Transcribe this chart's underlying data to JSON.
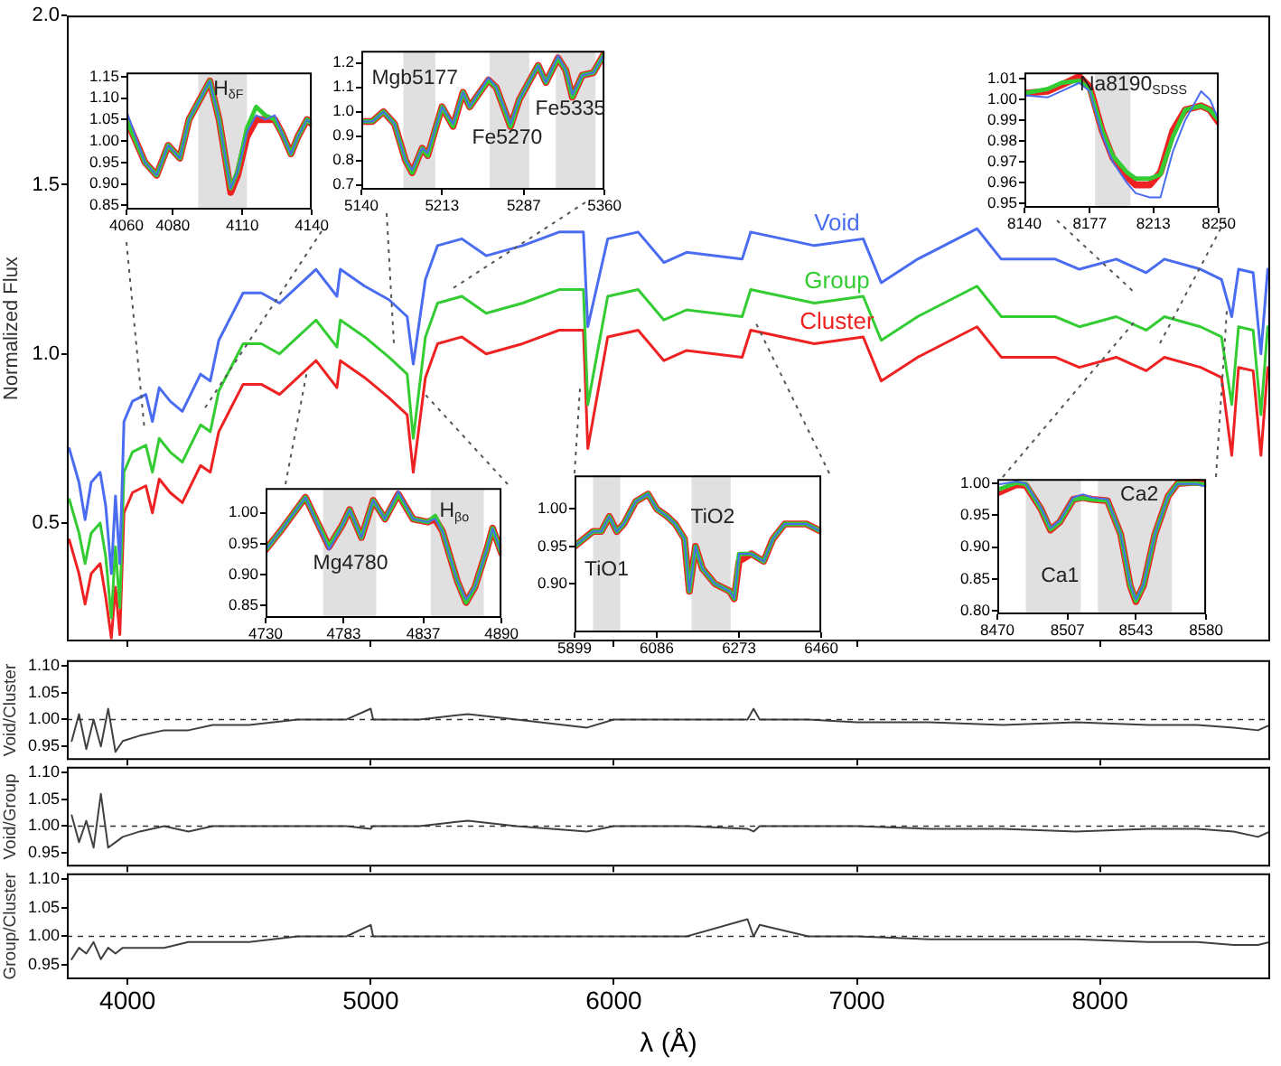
{
  "chart_data": [
    {
      "type": "line",
      "ylabel": "Normalized Flux",
      "xlim": [
        3750,
        8700
      ],
      "ylim": [
        0.15,
        2.0
      ],
      "xticks": [
        4000,
        5000,
        6000,
        7000,
        8000
      ],
      "yticks": [
        0.5,
        {
          "value": 1,
          "label": "1.0"
        },
        1.5,
        {
          "value": 2,
          "label": "2.0"
        }
      ],
      "tick_labels": "y",
      "x": [
        3760,
        3800,
        3825,
        3850,
        3887,
        3910,
        3933,
        3950,
        3968,
        3985,
        4020,
        4075,
        4102,
        4130,
        4175,
        4225,
        4300,
        4340,
        4375,
        4475,
        4550,
        4625,
        4700,
        4775,
        4861,
        4875,
        4975,
        5075,
        5150,
        5175,
        5225,
        5275,
        5375,
        5475,
        5625,
        5775,
        5875,
        5893,
        5975,
        6100,
        6206,
        6300,
        6528,
        6563,
        6825,
        7026,
        7100,
        7250,
        7494,
        7594,
        7816,
        7915,
        8067,
        8190,
        8265,
        8414,
        8500,
        8542,
        8570,
        8630,
        8662,
        8690
      ],
      "series": [
        {
          "name": "Void",
          "color": "#4a6cf0",
          "values": [
            0.72,
            0.62,
            0.51,
            0.62,
            0.65,
            0.55,
            0.35,
            0.58,
            0.38,
            0.8,
            0.86,
            0.88,
            0.8,
            0.9,
            0.86,
            0.83,
            0.94,
            0.92,
            1.04,
            1.18,
            1.18,
            1.15,
            1.2,
            1.25,
            1.17,
            1.25,
            1.2,
            1.16,
            1.11,
            0.97,
            1.22,
            1.32,
            1.34,
            1.29,
            1.32,
            1.36,
            1.36,
            1.08,
            1.34,
            1.36,
            1.27,
            1.3,
            1.28,
            1.36,
            1.32,
            1.34,
            1.21,
            1.28,
            1.37,
            1.28,
            1.28,
            1.25,
            1.28,
            1.24,
            1.28,
            1.25,
            1.22,
            1.11,
            1.25,
            1.24,
            1.0,
            1.25
          ]
        },
        {
          "name": "Group",
          "color": "#33cc33",
          "values": [
            0.57,
            0.47,
            0.38,
            0.47,
            0.5,
            0.4,
            0.22,
            0.43,
            0.25,
            0.65,
            0.71,
            0.73,
            0.65,
            0.75,
            0.71,
            0.68,
            0.79,
            0.77,
            0.89,
            1.03,
            1.03,
            1.0,
            1.05,
            1.1,
            1.02,
            1.1,
            1.05,
            0.99,
            0.94,
            0.75,
            1.05,
            1.15,
            1.17,
            1.12,
            1.15,
            1.19,
            1.19,
            0.85,
            1.17,
            1.19,
            1.1,
            1.13,
            1.11,
            1.19,
            1.15,
            1.17,
            1.04,
            1.11,
            1.2,
            1.11,
            1.11,
            1.08,
            1.11,
            1.07,
            1.11,
            1.08,
            1.05,
            0.85,
            1.08,
            1.07,
            0.82,
            1.08
          ]
        },
        {
          "name": "Cluster",
          "color": "#ee2222",
          "values": [
            0.45,
            0.35,
            0.26,
            0.35,
            0.38,
            0.28,
            0.16,
            0.31,
            0.17,
            0.53,
            0.59,
            0.61,
            0.53,
            0.63,
            0.59,
            0.56,
            0.67,
            0.65,
            0.77,
            0.91,
            0.91,
            0.88,
            0.93,
            0.98,
            0.9,
            0.98,
            0.93,
            0.87,
            0.82,
            0.65,
            0.93,
            1.03,
            1.05,
            1.0,
            1.03,
            1.07,
            1.07,
            0.72,
            1.05,
            1.07,
            0.98,
            1.01,
            0.99,
            1.07,
            1.03,
            1.05,
            0.92,
            0.99,
            1.08,
            0.99,
            0.99,
            0.96,
            0.99,
            0.95,
            0.99,
            0.96,
            0.93,
            0.7,
            0.96,
            0.95,
            0.7,
            0.96
          ]
        }
      ]
    },
    {
      "type": "line",
      "xlim": [
        4060,
        4140
      ],
      "ylim": [
        0.84,
        1.16
      ],
      "xticks": [
        4060,
        4080,
        4110,
        4140
      ],
      "yticks": [
        {
          "value": 0.85,
          "label": "0.85"
        },
        {
          "value": 0.9,
          "label": "0.90"
        },
        {
          "value": 0.95,
          "label": "0.95"
        },
        {
          "value": 1,
          "label": "1.00"
        },
        {
          "value": 1.05,
          "label": "1.05"
        },
        {
          "value": 1.1,
          "label": "1.10"
        },
        {
          "value": 1.15,
          "label": "1.15"
        }
      ],
      "bands": [
        {
          "axis": "x",
          "from": 4091,
          "to": 4112,
          "color": "#e0e0e0"
        }
      ],
      "annotations": [
        "H$_{δF}$"
      ],
      "x": [
        4060,
        4064,
        4068,
        4073,
        4078,
        4083,
        4087,
        4092,
        4096,
        4100,
        4103,
        4105,
        4108,
        4112,
        4116,
        4120,
        4124,
        4127,
        4131,
        4134,
        4138,
        4140
      ],
      "series": [
        {
          "color": "#4a6cf0",
          "values": [
            1.07,
            1.01,
            0.95,
            0.92,
            0.99,
            0.96,
            1.05,
            1.1,
            1.14,
            1.05,
            0.95,
            0.89,
            0.93,
            1.02,
            1.06,
            1.05,
            1.06,
            1.02,
            0.97,
            1.01,
            1.05,
            1.04
          ]
        },
        {
          "color": "#33cc33",
          "values": [
            1.05,
            1.0,
            0.95,
            0.92,
            0.99,
            0.96,
            1.05,
            1.1,
            1.14,
            1.05,
            0.95,
            0.89,
            0.93,
            1.03,
            1.08,
            1.06,
            1.05,
            1.02,
            0.97,
            1.01,
            1.05,
            1.04
          ]
        },
        {
          "color": "#ee2222",
          "values": [
            1.05,
            1.0,
            0.95,
            0.92,
            0.99,
            0.96,
            1.05,
            1.1,
            1.14,
            1.05,
            0.95,
            0.88,
            0.92,
            1.01,
            1.05,
            1.05,
            1.05,
            1.02,
            0.97,
            1.01,
            1.05,
            1.04
          ]
        }
      ]
    },
    {
      "type": "line",
      "xlim": [
        5140,
        5360
      ],
      "ylim": [
        0.68,
        1.25
      ],
      "xticks": [
        5140,
        5213,
        5287,
        5360
      ],
      "yticks": [
        0.7,
        0.8,
        0.9,
        {
          "value": 1,
          "label": "1.0"
        },
        1.1,
        1.2
      ],
      "bands": [
        {
          "axis": "x",
          "from": 5178,
          "to": 5207,
          "color": "#e0e0e0"
        },
        {
          "axis": "x",
          "from": 5256,
          "to": 5292,
          "color": "#e0e0e0"
        },
        {
          "axis": "x",
          "from": 5316,
          "to": 5352,
          "color": "#e0e0e0"
        }
      ],
      "annotations": [
        "Mgb5177",
        "Fe5270",
        "Fe5335"
      ],
      "x": [
        5140,
        5150,
        5160,
        5170,
        5180,
        5186,
        5195,
        5200,
        5213,
        5223,
        5232,
        5238,
        5255,
        5262,
        5275,
        5283,
        5300,
        5307,
        5318,
        5325,
        5331,
        5340,
        5350,
        5360
      ],
      "series": [
        {
          "color": "#4a6cf0",
          "values": [
            0.96,
            0.96,
            1.0,
            0.95,
            0.8,
            0.76,
            0.85,
            0.83,
            1.02,
            0.95,
            1.08,
            1.02,
            1.14,
            1.1,
            0.95,
            1.05,
            1.19,
            1.12,
            1.23,
            1.17,
            1.07,
            1.15,
            1.16,
            1.24
          ]
        },
        {
          "color": "#33cc33",
          "values": [
            0.96,
            0.96,
            1.0,
            0.95,
            0.8,
            0.75,
            0.85,
            0.82,
            1.02,
            0.94,
            1.08,
            1.02,
            1.13,
            1.1,
            0.94,
            1.05,
            1.19,
            1.12,
            1.22,
            1.17,
            1.06,
            1.15,
            1.16,
            1.24
          ]
        },
        {
          "color": "#ee2222",
          "values": [
            0.96,
            0.96,
            1.0,
            0.95,
            0.8,
            0.75,
            0.85,
            0.82,
            1.02,
            0.94,
            1.08,
            1.02,
            1.13,
            1.1,
            0.94,
            1.05,
            1.19,
            1.12,
            1.22,
            1.17,
            1.06,
            1.15,
            1.16,
            1.24
          ]
        }
      ]
    },
    {
      "type": "line",
      "xlim": [
        8140,
        8250
      ],
      "ylim": [
        0.948,
        1.013
      ],
      "xticks": [
        8140,
        8177,
        8213,
        8250
      ],
      "yticks": [
        0.95,
        0.96,
        0.97,
        0.98,
        0.99,
        {
          "value": 1,
          "label": "1.00"
        },
        1.01
      ],
      "bands": [
        {
          "axis": "x",
          "from": 8180,
          "to": 8200,
          "color": "#e0e0e0"
        }
      ],
      "annotations": [
        "Na8190$_{SDSS}$"
      ],
      "x": [
        8140,
        8153,
        8161,
        8171,
        8177,
        8184,
        8190,
        8198,
        8203,
        8211,
        8217,
        8224,
        8231,
        8240,
        8245,
        8250
      ],
      "series": [
        {
          "color": "#4a6cf0",
          "values": [
            1.002,
            1.001,
            1.004,
            1.008,
            1.004,
            0.983,
            0.97,
            0.96,
            0.955,
            0.953,
            0.953,
            0.975,
            0.99,
            1.004,
            1.0,
            0.99
          ]
        },
        {
          "color": "#33cc33",
          "values": [
            1.003,
            1.005,
            1.008,
            1.009,
            1.005,
            0.985,
            0.973,
            0.965,
            0.962,
            0.962,
            0.964,
            0.982,
            0.995,
            0.997,
            0.995,
            0.99
          ]
        },
        {
          "color": "#ee2222",
          "values": [
            1.003,
            1.004,
            1.007,
            1.011,
            1.006,
            0.985,
            0.972,
            0.963,
            0.959,
            0.959,
            0.965,
            0.985,
            0.995,
            0.997,
            0.995,
            0.989
          ]
        }
      ]
    },
    {
      "type": "line",
      "xlim": [
        4730,
        4890
      ],
      "ylim": [
        0.83,
        1.04
      ],
      "xticks": [
        4730,
        4783,
        4837,
        4890
      ],
      "yticks": [
        0.85,
        {
          "value": 0.9,
          "label": "0.90"
        },
        0.95,
        {
          "value": 1,
          "label": "1.00"
        }
      ],
      "bands": [
        {
          "axis": "x",
          "from": 4769,
          "to": 4805,
          "color": "#e0e0e0"
        },
        {
          "axis": "x",
          "from": 4842,
          "to": 4878,
          "color": "#e0e0e0"
        }
      ],
      "annotations": [
        "Mg4780",
        "H$_{βo}$"
      ],
      "x": [
        4730,
        4740,
        4757,
        4773,
        4782,
        4787,
        4795,
        4803,
        4811,
        4820,
        4830,
        4840,
        4845,
        4850,
        4860,
        4866,
        4872,
        4880,
        4884,
        4890
      ],
      "series": [
        {
          "color": "#4a6cf0",
          "values": [
            0.94,
            0.97,
            1.025,
            0.94,
            0.98,
            1.005,
            0.96,
            1.02,
            0.99,
            1.035,
            0.99,
            0.985,
            0.99,
            0.97,
            0.89,
            0.86,
            0.88,
            0.94,
            0.975,
            0.935
          ]
        },
        {
          "color": "#33cc33",
          "values": [
            0.94,
            0.97,
            1.025,
            0.945,
            0.98,
            1.005,
            0.96,
            1.02,
            0.99,
            1.03,
            0.99,
            0.985,
            0.995,
            0.97,
            0.89,
            0.855,
            0.88,
            0.94,
            0.975,
            0.935
          ]
        },
        {
          "color": "#ee2222",
          "values": [
            0.94,
            0.97,
            1.025,
            0.945,
            0.98,
            1.005,
            0.96,
            1.02,
            0.99,
            1.03,
            0.99,
            0.985,
            0.99,
            0.97,
            0.89,
            0.855,
            0.88,
            0.94,
            0.975,
            0.935
          ]
        }
      ]
    },
    {
      "type": "line",
      "xlim": [
        5899,
        6460
      ],
      "ylim": [
        0.835,
        1.045
      ],
      "xticks": [
        5899,
        6086,
        6273,
        6460
      ],
      "yticks": [
        {
          "value": 0.9,
          "label": "0.90"
        },
        0.95,
        {
          "value": 1,
          "label": "1.00"
        }
      ],
      "bands": [
        {
          "axis": "x",
          "from": 5941,
          "to": 6003,
          "color": "#e0e0e0"
        },
        {
          "axis": "x",
          "from": 6165,
          "to": 6254,
          "color": "#e0e0e0"
        }
      ],
      "annotations": [
        "TiO1",
        "TiO2"
      ],
      "x": [
        5899,
        5920,
        5941,
        5960,
        5978,
        5995,
        6011,
        6038,
        6066,
        6086,
        6110,
        6128,
        6149,
        6160,
        6174,
        6190,
        6218,
        6252,
        6262,
        6273,
        6301,
        6329,
        6350,
        6377,
        6426,
        6460
      ],
      "series": [
        {
          "color": "#4a6cf0",
          "values": [
            0.95,
            0.96,
            0.97,
            0.97,
            0.99,
            0.97,
            0.98,
            1.01,
            1.02,
            1.0,
            0.99,
            0.98,
            0.96,
            0.89,
            0.95,
            0.92,
            0.9,
            0.89,
            0.88,
            0.94,
            0.94,
            0.93,
            0.96,
            0.98,
            0.98,
            0.97
          ]
        },
        {
          "color": "#33cc33",
          "values": [
            0.95,
            0.96,
            0.97,
            0.97,
            0.99,
            0.97,
            0.98,
            1.01,
            1.02,
            1.0,
            0.99,
            0.98,
            0.96,
            0.89,
            0.95,
            0.92,
            0.9,
            0.89,
            0.88,
            0.94,
            0.94,
            0.93,
            0.96,
            0.98,
            0.98,
            0.97
          ]
        },
        {
          "color": "#ee2222",
          "values": [
            0.95,
            0.96,
            0.97,
            0.97,
            0.99,
            0.97,
            0.98,
            1.01,
            1.02,
            1.0,
            0.99,
            0.98,
            0.96,
            0.89,
            0.95,
            0.92,
            0.9,
            0.89,
            0.88,
            0.93,
            0.94,
            0.93,
            0.96,
            0.98,
            0.98,
            0.97
          ]
        }
      ]
    },
    {
      "type": "line",
      "xlim": [
        8470,
        8580
      ],
      "ylim": [
        0.795,
        1.007
      ],
      "xticks": [
        8470,
        8507,
        8543,
        8580
      ],
      "yticks": [
        {
          "value": 0.8,
          "label": "0.80"
        },
        0.85,
        {
          "value": 0.9,
          "label": "0.90"
        },
        0.95,
        {
          "value": 1,
          "label": "1.00"
        }
      ],
      "bands": [
        {
          "axis": "x",
          "from": 8485,
          "to": 8514,
          "color": "#e0e0e0"
        },
        {
          "axis": "x",
          "from": 8523,
          "to": 8562,
          "color": "#e0e0e0"
        }
      ],
      "annotations": [
        "Ca1",
        "Ca2"
      ],
      "x": [
        8470,
        8480,
        8485,
        8493,
        8498,
        8503,
        8510,
        8515,
        8520,
        8528,
        8535,
        8540,
        8543,
        8547,
        8553,
        8560,
        8565,
        8575,
        8580
      ],
      "series": [
        {
          "color": "#4a6cf0",
          "values": [
            0.998,
            1.003,
            1.0,
            0.962,
            0.93,
            0.942,
            0.978,
            0.983,
            0.978,
            0.975,
            0.92,
            0.842,
            0.818,
            0.842,
            0.92,
            0.98,
            0.999,
            0.999,
            0.995
          ]
        },
        {
          "color": "#33cc33",
          "values": [
            0.99,
            1.001,
            0.999,
            0.96,
            0.928,
            0.94,
            0.975,
            0.977,
            0.975,
            0.973,
            0.92,
            0.84,
            0.816,
            0.84,
            0.92,
            0.98,
            1.0,
            1.0,
            0.998
          ]
        },
        {
          "color": "#ee2222",
          "values": [
            0.985,
            0.998,
            0.997,
            0.96,
            0.927,
            0.94,
            0.975,
            0.978,
            0.975,
            0.973,
            0.92,
            0.84,
            0.815,
            0.84,
            0.92,
            0.98,
            1.0,
            1.002,
            1.0
          ]
        }
      ]
    },
    {
      "type": "line",
      "ylabel": "Void/Cluster",
      "xlim": [
        3750,
        8700
      ],
      "ylim": [
        0.925,
        1.11
      ],
      "xticks": [
        4000,
        5000,
        6000,
        7000,
        8000
      ],
      "yticks": [
        0.95,
        {
          "value": 1,
          "label": "1.00"
        },
        1.05,
        {
          "value": 1.1,
          "label": "1.10"
        }
      ],
      "tick_labels": "y",
      "ref_lines": [
        {
          "axis": "y",
          "value": 1,
          "line_style": "dashed"
        }
      ],
      "x": [
        3770,
        3800,
        3830,
        3860,
        3890,
        3920,
        3950,
        3980,
        4050,
        4150,
        4250,
        4350,
        4500,
        4700,
        4900,
        5000,
        5010,
        5200,
        5400,
        5600,
        5890,
        6000,
        6300,
        6550,
        6575,
        6600,
        6800,
        7000,
        7300,
        7600,
        7900,
        8200,
        8400,
        8550,
        8650,
        8700
      ],
      "series": [
        {
          "color": "#404040",
          "values": [
            0.96,
            1.01,
            0.945,
            1.0,
            0.95,
            1.02,
            0.94,
            0.96,
            0.97,
            0.98,
            0.98,
            0.99,
            0.99,
            1.0,
            1.0,
            1.02,
            1.0,
            1.0,
            1.01,
            1.0,
            0.985,
            1.0,
            1.0,
            1.0,
            1.02,
            1.0,
            1.0,
            0.995,
            0.995,
            0.99,
            0.995,
            0.99,
            0.99,
            0.985,
            0.98,
            0.99
          ]
        }
      ]
    },
    {
      "type": "line",
      "ylabel": "Void/Group",
      "xlim": [
        3750,
        8700
      ],
      "ylim": [
        0.925,
        1.11
      ],
      "xticks": [
        4000,
        5000,
        6000,
        7000,
        8000
      ],
      "yticks": [
        0.95,
        {
          "value": 1,
          "label": "1.00"
        },
        1.05,
        {
          "value": 1.1,
          "label": "1.10"
        }
      ],
      "tick_labels": "y",
      "ref_lines": [
        {
          "axis": "y",
          "value": 1,
          "line_style": "dashed"
        }
      ],
      "x": [
        3770,
        3800,
        3830,
        3860,
        3890,
        3920,
        3950,
        3980,
        4050,
        4150,
        4250,
        4350,
        4500,
        4700,
        4900,
        5000,
        5010,
        5200,
        5400,
        5600,
        5890,
        6000,
        6300,
        6550,
        6575,
        6600,
        6800,
        7000,
        7300,
        7600,
        7900,
        8200,
        8400,
        8550,
        8650,
        8700
      ],
      "series": [
        {
          "color": "#404040",
          "values": [
            1.02,
            0.97,
            1.01,
            0.96,
            1.06,
            0.96,
            0.97,
            0.98,
            0.99,
            1.0,
            0.99,
            1.0,
            1.0,
            1.0,
            1.0,
            0.995,
            1.0,
            1.0,
            1.01,
            1.0,
            0.99,
            1.0,
            1.0,
            0.995,
            0.99,
            1.0,
            1.0,
            1.0,
            0.995,
            0.995,
            0.99,
            0.995,
            0.995,
            0.99,
            0.98,
            0.99
          ]
        }
      ]
    },
    {
      "type": "line",
      "ylabel": "Group/Cluster",
      "xlabel": "λ (Å)",
      "xlim": [
        3750,
        8700
      ],
      "ylim": [
        0.925,
        1.11
      ],
      "xticks": [
        4000,
        5000,
        6000,
        7000,
        8000
      ],
      "yticks": [
        0.95,
        {
          "value": 1,
          "label": "1.00"
        },
        1.05,
        {
          "value": 1.1,
          "label": "1.10"
        }
      ],
      "ref_lines": [
        {
          "axis": "y",
          "value": 1,
          "line_style": "dashed"
        }
      ],
      "x": [
        3770,
        3800,
        3830,
        3860,
        3890,
        3920,
        3950,
        3980,
        4050,
        4150,
        4250,
        4350,
        4500,
        4700,
        4900,
        5000,
        5010,
        5200,
        5400,
        5600,
        5890,
        6000,
        6300,
        6550,
        6575,
        6600,
        6800,
        7000,
        7300,
        7600,
        7900,
        8200,
        8400,
        8550,
        8650,
        8700
      ],
      "series": [
        {
          "color": "#404040",
          "values": [
            0.96,
            0.98,
            0.97,
            0.99,
            0.96,
            0.98,
            0.97,
            0.98,
            0.98,
            0.98,
            0.99,
            0.99,
            0.99,
            1.0,
            1.0,
            1.02,
            1.0,
            1.0,
            1.0,
            1.0,
            1.0,
            1.0,
            1.0,
            1.03,
            1.0,
            1.02,
            1.0,
            1.0,
            0.995,
            0.995,
            0.995,
            0.99,
            0.99,
            0.985,
            0.985,
            0.99
          ]
        }
      ]
    }
  ]
}
